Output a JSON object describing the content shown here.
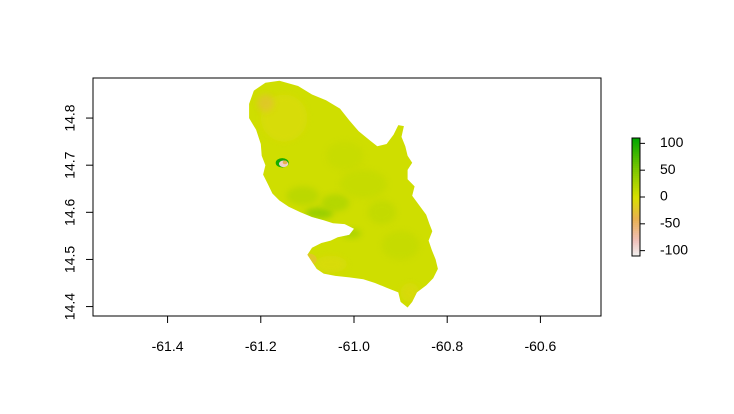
{
  "chart_data": {
    "type": "heatmap",
    "title": "",
    "xlabel": "",
    "ylabel": "",
    "xlim": [
      -61.56,
      -60.47
    ],
    "ylim": [
      14.38,
      14.885
    ],
    "x_ticks": [
      {
        "value": -61.4,
        "label": "-61.4"
      },
      {
        "value": -61.2,
        "label": "-61.2"
      },
      {
        "value": -61.0,
        "label": "-61.0"
      },
      {
        "value": -60.8,
        "label": "-60.8"
      },
      {
        "value": -60.6,
        "label": "-60.6"
      }
    ],
    "y_ticks": [
      {
        "value": 14.4,
        "label": "14.4"
      },
      {
        "value": 14.5,
        "label": "14.5"
      },
      {
        "value": 14.6,
        "label": "14.6"
      },
      {
        "value": 14.7,
        "label": "14.7"
      },
      {
        "value": 14.8,
        "label": "14.8"
      }
    ],
    "legend": {
      "placement": "right",
      "range": [
        -110,
        110
      ],
      "ticks": [
        {
          "value": 100,
          "label": "100"
        },
        {
          "value": 50,
          "label": "50"
        },
        {
          "value": 0,
          "label": "0"
        },
        {
          "value": -50,
          "label": "-50"
        },
        {
          "value": -100,
          "label": "-100"
        }
      ],
      "colors": [
        {
          "value": -110,
          "color": "#f2f2f2"
        },
        {
          "value": -80,
          "color": "#efbfb8"
        },
        {
          "value": -40,
          "color": "#e8b050"
        },
        {
          "value": 0,
          "color": "#d8e000"
        },
        {
          "value": 50,
          "color": "#80c800"
        },
        {
          "value": 110,
          "color": "#00a600"
        }
      ]
    },
    "region": {
      "name": "",
      "base_value": 5,
      "outline": [
        [
          -61.225,
          14.83
        ],
        [
          -61.215,
          14.858
        ],
        [
          -61.19,
          14.875
        ],
        [
          -61.16,
          14.879
        ],
        [
          -61.12,
          14.868
        ],
        [
          -61.09,
          14.85
        ],
        [
          -61.06,
          14.838
        ],
        [
          -61.03,
          14.82
        ],
        [
          -61.01,
          14.795
        ],
        [
          -60.99,
          14.772
        ],
        [
          -60.965,
          14.752
        ],
        [
          -60.95,
          14.74
        ],
        [
          -60.93,
          14.745
        ],
        [
          -60.915,
          14.765
        ],
        [
          -60.905,
          14.785
        ],
        [
          -60.893,
          14.783
        ],
        [
          -60.898,
          14.76
        ],
        [
          -60.89,
          14.74
        ],
        [
          -60.885,
          14.72
        ],
        [
          -60.875,
          14.705
        ],
        [
          -60.885,
          14.69
        ],
        [
          -60.885,
          14.67
        ],
        [
          -60.87,
          14.655
        ],
        [
          -60.875,
          14.635
        ],
        [
          -60.86,
          14.615
        ],
        [
          -60.845,
          14.595
        ],
        [
          -60.838,
          14.575
        ],
        [
          -60.832,
          14.56
        ],
        [
          -60.84,
          14.54
        ],
        [
          -60.833,
          14.52
        ],
        [
          -60.825,
          14.5
        ],
        [
          -60.82,
          14.48
        ],
        [
          -60.83,
          14.46
        ],
        [
          -60.845,
          14.445
        ],
        [
          -60.865,
          14.43
        ],
        [
          -60.875,
          14.41
        ],
        [
          -60.885,
          14.398
        ],
        [
          -60.9,
          14.41
        ],
        [
          -60.905,
          14.43
        ],
        [
          -60.93,
          14.44
        ],
        [
          -60.955,
          14.45
        ],
        [
          -60.98,
          14.458
        ],
        [
          -61.01,
          14.462
        ],
        [
          -61.04,
          14.465
        ],
        [
          -61.065,
          14.47
        ],
        [
          -61.08,
          14.48
        ],
        [
          -61.09,
          14.495
        ],
        [
          -61.1,
          14.51
        ],
        [
          -61.09,
          14.525
        ],
        [
          -61.07,
          14.535
        ],
        [
          -61.05,
          14.54
        ],
        [
          -61.035,
          14.547
        ],
        [
          -61.01,
          14.552
        ],
        [
          -61.0,
          14.565
        ],
        [
          -61.02,
          14.575
        ],
        [
          -61.045,
          14.577
        ],
        [
          -61.065,
          14.583
        ],
        [
          -61.09,
          14.59
        ],
        [
          -61.115,
          14.6
        ],
        [
          -61.14,
          14.612
        ],
        [
          -61.16,
          14.625
        ],
        [
          -61.175,
          14.64
        ],
        [
          -61.185,
          14.66
        ],
        [
          -61.195,
          14.68
        ],
        [
          -61.19,
          14.7
        ],
        [
          -61.198,
          14.72
        ],
        [
          -61.2,
          14.745
        ],
        [
          -61.21,
          14.775
        ],
        [
          -61.225,
          14.8
        ]
      ],
      "patches": [
        {
          "x": -61.075,
          "y": 14.598,
          "rx": 0.03,
          "ry": 0.012,
          "value": 45
        },
        {
          "x": -61.04,
          "y": 14.62,
          "rx": 0.03,
          "ry": 0.018,
          "value": 25
        },
        {
          "x": -61.11,
          "y": 14.635,
          "rx": 0.035,
          "ry": 0.02,
          "value": 20
        },
        {
          "x": -61.005,
          "y": 14.555,
          "rx": 0.02,
          "ry": 0.01,
          "value": 30
        },
        {
          "x": -61.02,
          "y": 14.72,
          "rx": 0.04,
          "ry": 0.03,
          "value": 10
        },
        {
          "x": -60.98,
          "y": 14.66,
          "rx": 0.05,
          "ry": 0.03,
          "value": 12
        },
        {
          "x": -61.15,
          "y": 14.8,
          "rx": 0.05,
          "ry": 0.05,
          "value": -4
        },
        {
          "x": -61.19,
          "y": 14.832,
          "rx": 0.018,
          "ry": 0.018,
          "value": -25
        },
        {
          "x": -61.05,
          "y": 14.49,
          "rx": 0.035,
          "ry": 0.018,
          "value": -5
        },
        {
          "x": -61.095,
          "y": 14.5,
          "rx": 0.015,
          "ry": 0.012,
          "value": -20
        },
        {
          "x": -60.9,
          "y": 14.53,
          "rx": 0.04,
          "ry": 0.03,
          "value": 12
        },
        {
          "x": -60.88,
          "y": 14.43,
          "rx": 0.02,
          "ry": 0.02,
          "value": -6
        },
        {
          "x": -60.94,
          "y": 14.6,
          "rx": 0.03,
          "ry": 0.025,
          "value": 14
        },
        {
          "x": -61.154,
          "y": 14.705,
          "rx": 0.014,
          "ry": 0.01,
          "value": 100
        },
        {
          "x": -61.151,
          "y": 14.703,
          "rx": 0.01,
          "ry": 0.007,
          "value": -90
        },
        {
          "x": -61.148,
          "y": 14.706,
          "rx": 0.005,
          "ry": 0.004,
          "value": -40
        }
      ]
    }
  }
}
